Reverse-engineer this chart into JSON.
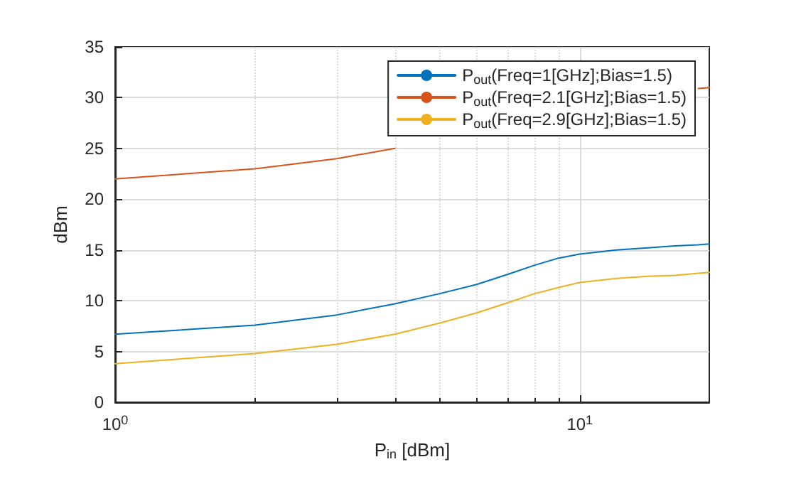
{
  "chart_data": {
    "type": "line",
    "xlabel": "P$_{in}$ [dBm]",
    "ylabel": "dBm",
    "x": [
      1,
      2,
      3,
      4,
      5,
      6,
      7,
      8,
      9,
      10,
      12,
      14,
      16,
      18,
      19
    ],
    "series": [
      {
        "name": "P$_{out}$(Freq=1[GHz];Bias=1.5)",
        "color": "#0072bd",
        "values": [
          6.7,
          7.6,
          8.6,
          9.7,
          10.7,
          11.6,
          12.6,
          13.5,
          14.2,
          14.6,
          15.0,
          15.2,
          15.4,
          15.5,
          15.6
        ]
      },
      {
        "name": "P$_{out}$(Freq=2.1[GHz];Bias=1.5)",
        "color": "#d95319",
        "values": [
          22,
          23,
          24,
          25,
          null,
          null,
          null,
          null,
          null,
          null,
          null,
          null,
          null,
          30.9,
          31
        ]
      },
      {
        "name": "P$_{out}$(Freq=2.9[GHz];Bias=1.5)",
        "color": "#edb120",
        "values": [
          3.8,
          4.8,
          5.7,
          6.7,
          7.8,
          8.8,
          9.8,
          10.7,
          11.3,
          11.8,
          12.2,
          12.4,
          12.5,
          12.7,
          12.8
        ]
      }
    ],
    "xlim": [
      1,
      19
    ],
    "xticks": [
      {
        "value": 1,
        "label": "10$^{0}$"
      },
      {
        "value": 10,
        "label": "10$^{1}$"
      }
    ],
    "ylim": [
      0,
      35
    ],
    "yticks": [
      0,
      5,
      10,
      15,
      20,
      25,
      30,
      35
    ],
    "log": "x",
    "grid": true,
    "legend": "top right",
    "marker": "none",
    "line_style": "solid"
  }
}
